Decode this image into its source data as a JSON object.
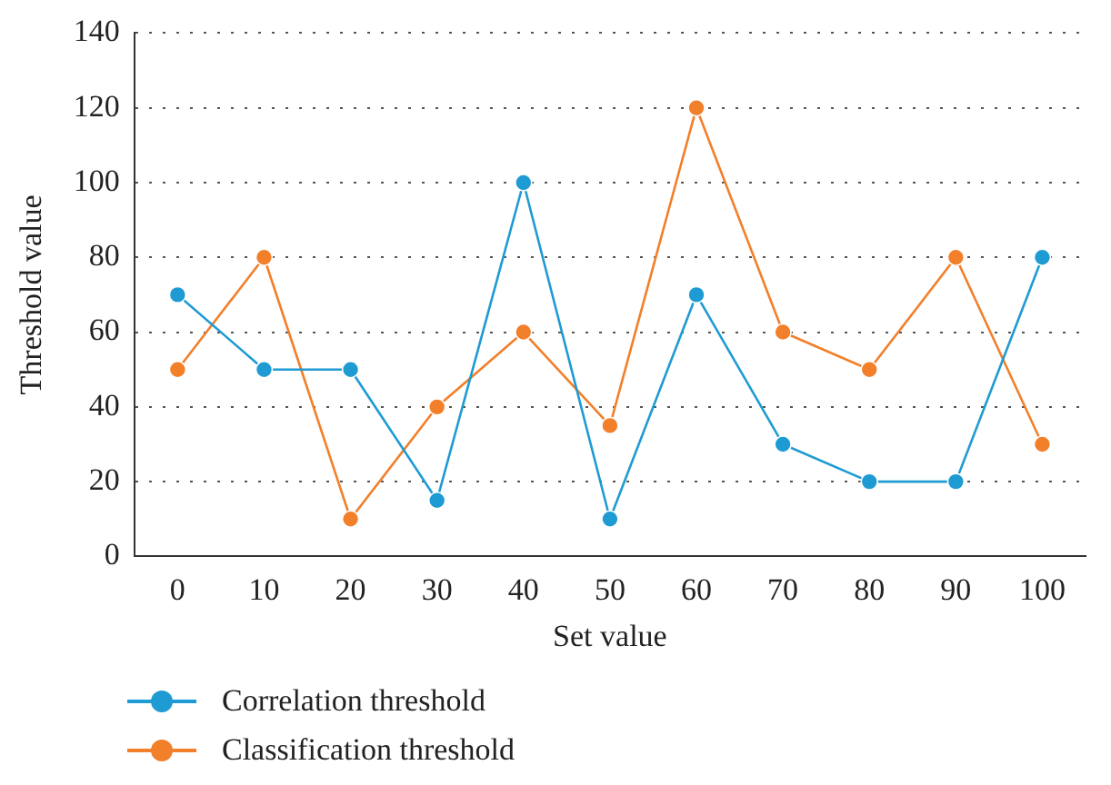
{
  "chart_data": {
    "type": "line",
    "xlabel": "Set value",
    "ylabel": "Threshold value",
    "categories": [
      "0",
      "10",
      "20",
      "30",
      "40",
      "50",
      "60",
      "70",
      "80",
      "90",
      "100"
    ],
    "series": [
      {
        "name": "Correlation threshold",
        "color": "#1f9bd3",
        "values": [
          70,
          50,
          50,
          15,
          100,
          10,
          70,
          30,
          20,
          20,
          80
        ]
      },
      {
        "name": "Classification threshold",
        "color": "#f27f2a",
        "values": [
          50,
          80,
          10,
          40,
          60,
          35,
          120,
          60,
          50,
          80,
          30
        ]
      }
    ],
    "ylim": [
      0,
      140
    ],
    "yticks": [
      0,
      20,
      40,
      60,
      80,
      100,
      120,
      140
    ],
    "grid": "y",
    "legend": "bottom left",
    "marker": "circle",
    "line_style": "solid"
  }
}
